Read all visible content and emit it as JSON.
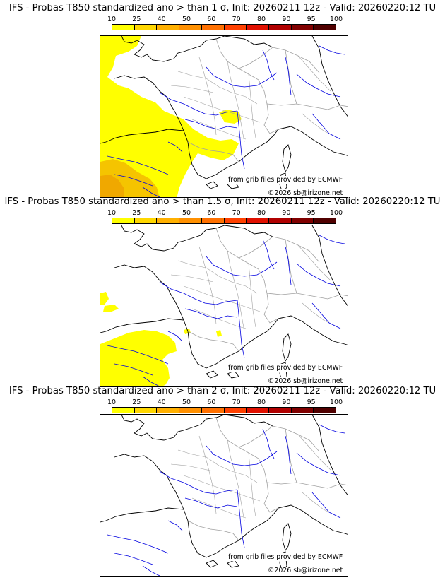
{
  "colors": {
    "scale": [
      "#ffff00",
      "#ffd700",
      "#ffb000",
      "#ff9000",
      "#ff7000",
      "#ff4000",
      "#e01000",
      "#b00000",
      "#800000",
      "#500000"
    ],
    "prob_fill_low": "#ffff00",
    "prob_fill_mid": "#f5c400",
    "prob_fill_high": "#f0a800",
    "coast": "#000000",
    "rivers": "#0000e0",
    "borders": "#a0a0a0"
  },
  "scale_ticks": [
    "10",
    "25",
    "40",
    "50",
    "60",
    "70",
    "80",
    "90",
    "95",
    "100"
  ],
  "credit_grib": "from grib files provided by ECMWF",
  "credit_copyright": "©2026 sb@irizone.net",
  "panels": [
    {
      "title": "IFS - Probas T850  standardized ano > than 1 σ, Init: 20260211 12z - Valid: 20260220:12 TU",
      "threshold_sigma": 1
    },
    {
      "title": "IFS - Probas T850  standardized ano > than 1.5 σ, Init: 20260211 12z - Valid: 20260220:12 TU",
      "threshold_sigma": 1.5
    },
    {
      "title": "IFS - Probas T850  standardized ano > than 2 σ, Init: 20260211 12z - Valid: 20260220:12 TU",
      "threshold_sigma": 2
    }
  ]
}
